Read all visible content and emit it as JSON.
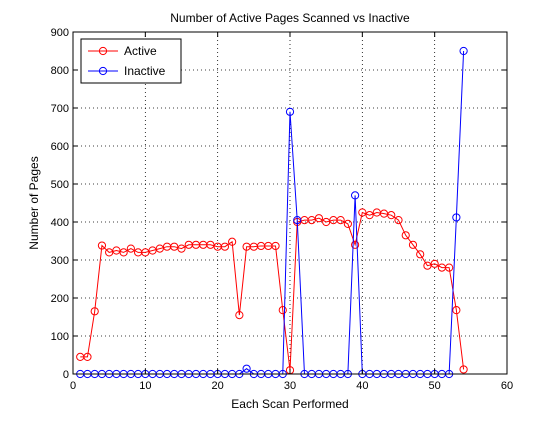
{
  "chart_data": {
    "type": "line",
    "title": "Number of Active Pages Scanned vs Inactive",
    "xlabel": "Each Scan Performed",
    "ylabel": "Number of Pages",
    "xlim": [
      0,
      60
    ],
    "ylim": [
      0,
      900
    ],
    "xticks": [
      0,
      10,
      20,
      30,
      40,
      50,
      60
    ],
    "yticks": [
      0,
      100,
      200,
      300,
      400,
      500,
      600,
      700,
      800,
      900
    ],
    "grid": true,
    "legend_position": "top-left",
    "marker": "circle",
    "series": [
      {
        "name": "Active",
        "color": "#ff0000",
        "x": [
          1,
          2,
          3,
          4,
          5,
          6,
          7,
          8,
          9,
          10,
          11,
          12,
          13,
          14,
          15,
          16,
          17,
          18,
          19,
          20,
          21,
          22,
          23,
          24,
          25,
          26,
          27,
          28,
          29,
          30,
          31,
          32,
          33,
          34,
          35,
          36,
          37,
          38,
          39,
          40,
          41,
          42,
          43,
          44,
          45,
          46,
          47,
          48,
          49,
          50,
          51,
          52,
          53,
          54
        ],
        "y": [
          45,
          45,
          165,
          338,
          320,
          325,
          320,
          330,
          320,
          320,
          325,
          330,
          335,
          335,
          330,
          340,
          340,
          340,
          340,
          335,
          335,
          348,
          155,
          335,
          335,
          337,
          337,
          337,
          168,
          10,
          400,
          405,
          405,
          410,
          400,
          405,
          405,
          395,
          340,
          425,
          418,
          425,
          422,
          418,
          405,
          365,
          340,
          315,
          285,
          290,
          280,
          280,
          168,
          12
        ]
      },
      {
        "name": "Inactive",
        "color": "#0000ff",
        "x": [
          1,
          2,
          3,
          4,
          5,
          6,
          7,
          8,
          9,
          10,
          11,
          12,
          13,
          14,
          15,
          16,
          17,
          18,
          19,
          20,
          21,
          22,
          23,
          24,
          25,
          26,
          27,
          28,
          29,
          30,
          31,
          32,
          33,
          34,
          35,
          36,
          37,
          38,
          39,
          40,
          41,
          42,
          43,
          44,
          45,
          46,
          47,
          48,
          49,
          50,
          51,
          52,
          53,
          54
        ],
        "y": [
          0,
          0,
          0,
          0,
          0,
          0,
          0,
          0,
          0,
          0,
          0,
          0,
          0,
          0,
          0,
          0,
          0,
          0,
          0,
          0,
          0,
          0,
          0,
          14,
          0,
          0,
          0,
          0,
          0,
          690,
          405,
          0,
          0,
          0,
          0,
          0,
          0,
          0,
          470,
          0,
          0,
          0,
          0,
          0,
          0,
          0,
          0,
          0,
          0,
          0,
          0,
          0,
          412,
          850
        ]
      }
    ]
  }
}
